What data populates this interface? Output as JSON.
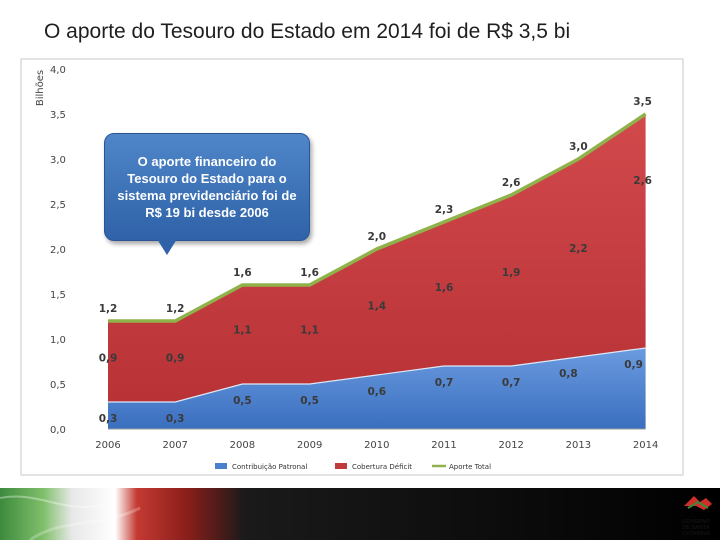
{
  "title": "O aporte do Tesouro do Estado em 2014 foi de R$ 3,5 bi",
  "callout": "O aporte financeiro do Tesouro do Estado para o sistema previdenciário foi de R$ 19 bi desde 2006",
  "logo": {
    "line1": "GOVERNO",
    "line2": "DE SANTA",
    "line3": "CATARINA"
  },
  "colors": {
    "patronal": "#4a7fcf",
    "deficit": "#c0393d",
    "total": "#8fb24a",
    "callout": "#3a6fb5"
  },
  "chart_data": {
    "type": "area",
    "title": "O aporte do Tesouro do Estado em 2014 foi de R$ 3,5 bi",
    "ylabel": "Bilhões",
    "xlabel": "",
    "ylim": [
      0,
      4
    ],
    "yticks": [
      "0,0",
      "0,5",
      "1,0",
      "1,5",
      "2,0",
      "2,5",
      "3,0",
      "3,5",
      "4,0"
    ],
    "categories": [
      "2006",
      "2007",
      "2008",
      "2009",
      "2010",
      "2011",
      "2012",
      "2013",
      "2014"
    ],
    "series": [
      {
        "name": "Contribuição Patronal",
        "values": [
          0.3,
          0.3,
          0.5,
          0.5,
          0.6,
          0.7,
          0.7,
          0.8,
          0.9
        ],
        "labels": [
          "0,3",
          "0,3",
          "0,5",
          "0,5",
          "0,6",
          "0,7",
          "0,7",
          "0,8",
          "0,9"
        ]
      },
      {
        "name": "Cobertura Déficit",
        "values": [
          0.9,
          0.9,
          1.1,
          1.1,
          1.4,
          1.6,
          1.9,
          2.2,
          2.6
        ],
        "labels": [
          "0,9",
          "0,9",
          "1,1",
          "1,1",
          "1,4",
          "1,6",
          "1,9",
          "2,2",
          "2,6"
        ]
      },
      {
        "name": "Aporte Total",
        "values": [
          1.2,
          1.2,
          1.6,
          1.6,
          2.0,
          2.3,
          2.6,
          3.0,
          3.5
        ],
        "labels": [
          "1,2",
          "1,2",
          "1,6",
          "1,6",
          "2,0",
          "2,3",
          "2,6",
          "3,0",
          "3,5"
        ]
      }
    ],
    "legend_position": "bottom",
    "grid": false
  }
}
